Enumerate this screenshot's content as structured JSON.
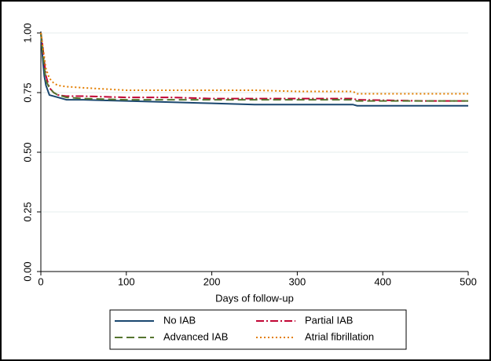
{
  "chart_data": {
    "type": "line",
    "x_label": "Days of follow-up",
    "x": [
      0,
      2,
      4,
      6,
      10,
      15,
      20,
      30,
      50,
      100,
      150,
      200,
      250,
      300,
      365,
      370,
      450,
      500
    ],
    "series": [
      {
        "name": "No IAB",
        "color": "#1a476f",
        "dash": "solid",
        "values": [
          1.0,
          0.9,
          0.82,
          0.78,
          0.74,
          0.735,
          0.73,
          0.72,
          0.72,
          0.715,
          0.71,
          0.705,
          0.7,
          0.7,
          0.7,
          0.695,
          0.695,
          0.695
        ]
      },
      {
        "name": "Partial IAB",
        "color": "#c10534",
        "dash": "dashdot",
        "values": [
          1.0,
          0.95,
          0.88,
          0.82,
          0.77,
          0.75,
          0.74,
          0.735,
          0.735,
          0.73,
          0.73,
          0.725,
          0.725,
          0.725,
          0.725,
          0.72,
          0.715,
          0.715
        ]
      },
      {
        "name": "Advanced IAB",
        "color": "#55752f",
        "dash": "dash",
        "values": [
          1.0,
          0.93,
          0.86,
          0.8,
          0.77,
          0.75,
          0.74,
          0.73,
          0.725,
          0.72,
          0.72,
          0.72,
          0.72,
          0.72,
          0.72,
          0.715,
          0.715,
          0.715
        ]
      },
      {
        "name": "Atrial fibrillation",
        "color": "#e37e00",
        "dash": "dot",
        "values": [
          1.0,
          0.95,
          0.9,
          0.85,
          0.81,
          0.79,
          0.78,
          0.775,
          0.77,
          0.76,
          0.76,
          0.76,
          0.76,
          0.755,
          0.755,
          0.745,
          0.745,
          0.745
        ]
      }
    ],
    "xlim": [
      0,
      500
    ],
    "xticks": [
      0,
      100,
      200,
      300,
      400,
      500
    ],
    "ylim": [
      0,
      1
    ],
    "yticks": [
      {
        "value": 0,
        "label": "0.00"
      },
      {
        "value": 0.25,
        "label": "0.25"
      },
      {
        "value": 0.5,
        "label": "0.50"
      },
      {
        "value": 0.75,
        "label": "0.75"
      },
      {
        "value": 1,
        "label": "1.00"
      }
    ],
    "grid": true,
    "legend": "bottom"
  }
}
